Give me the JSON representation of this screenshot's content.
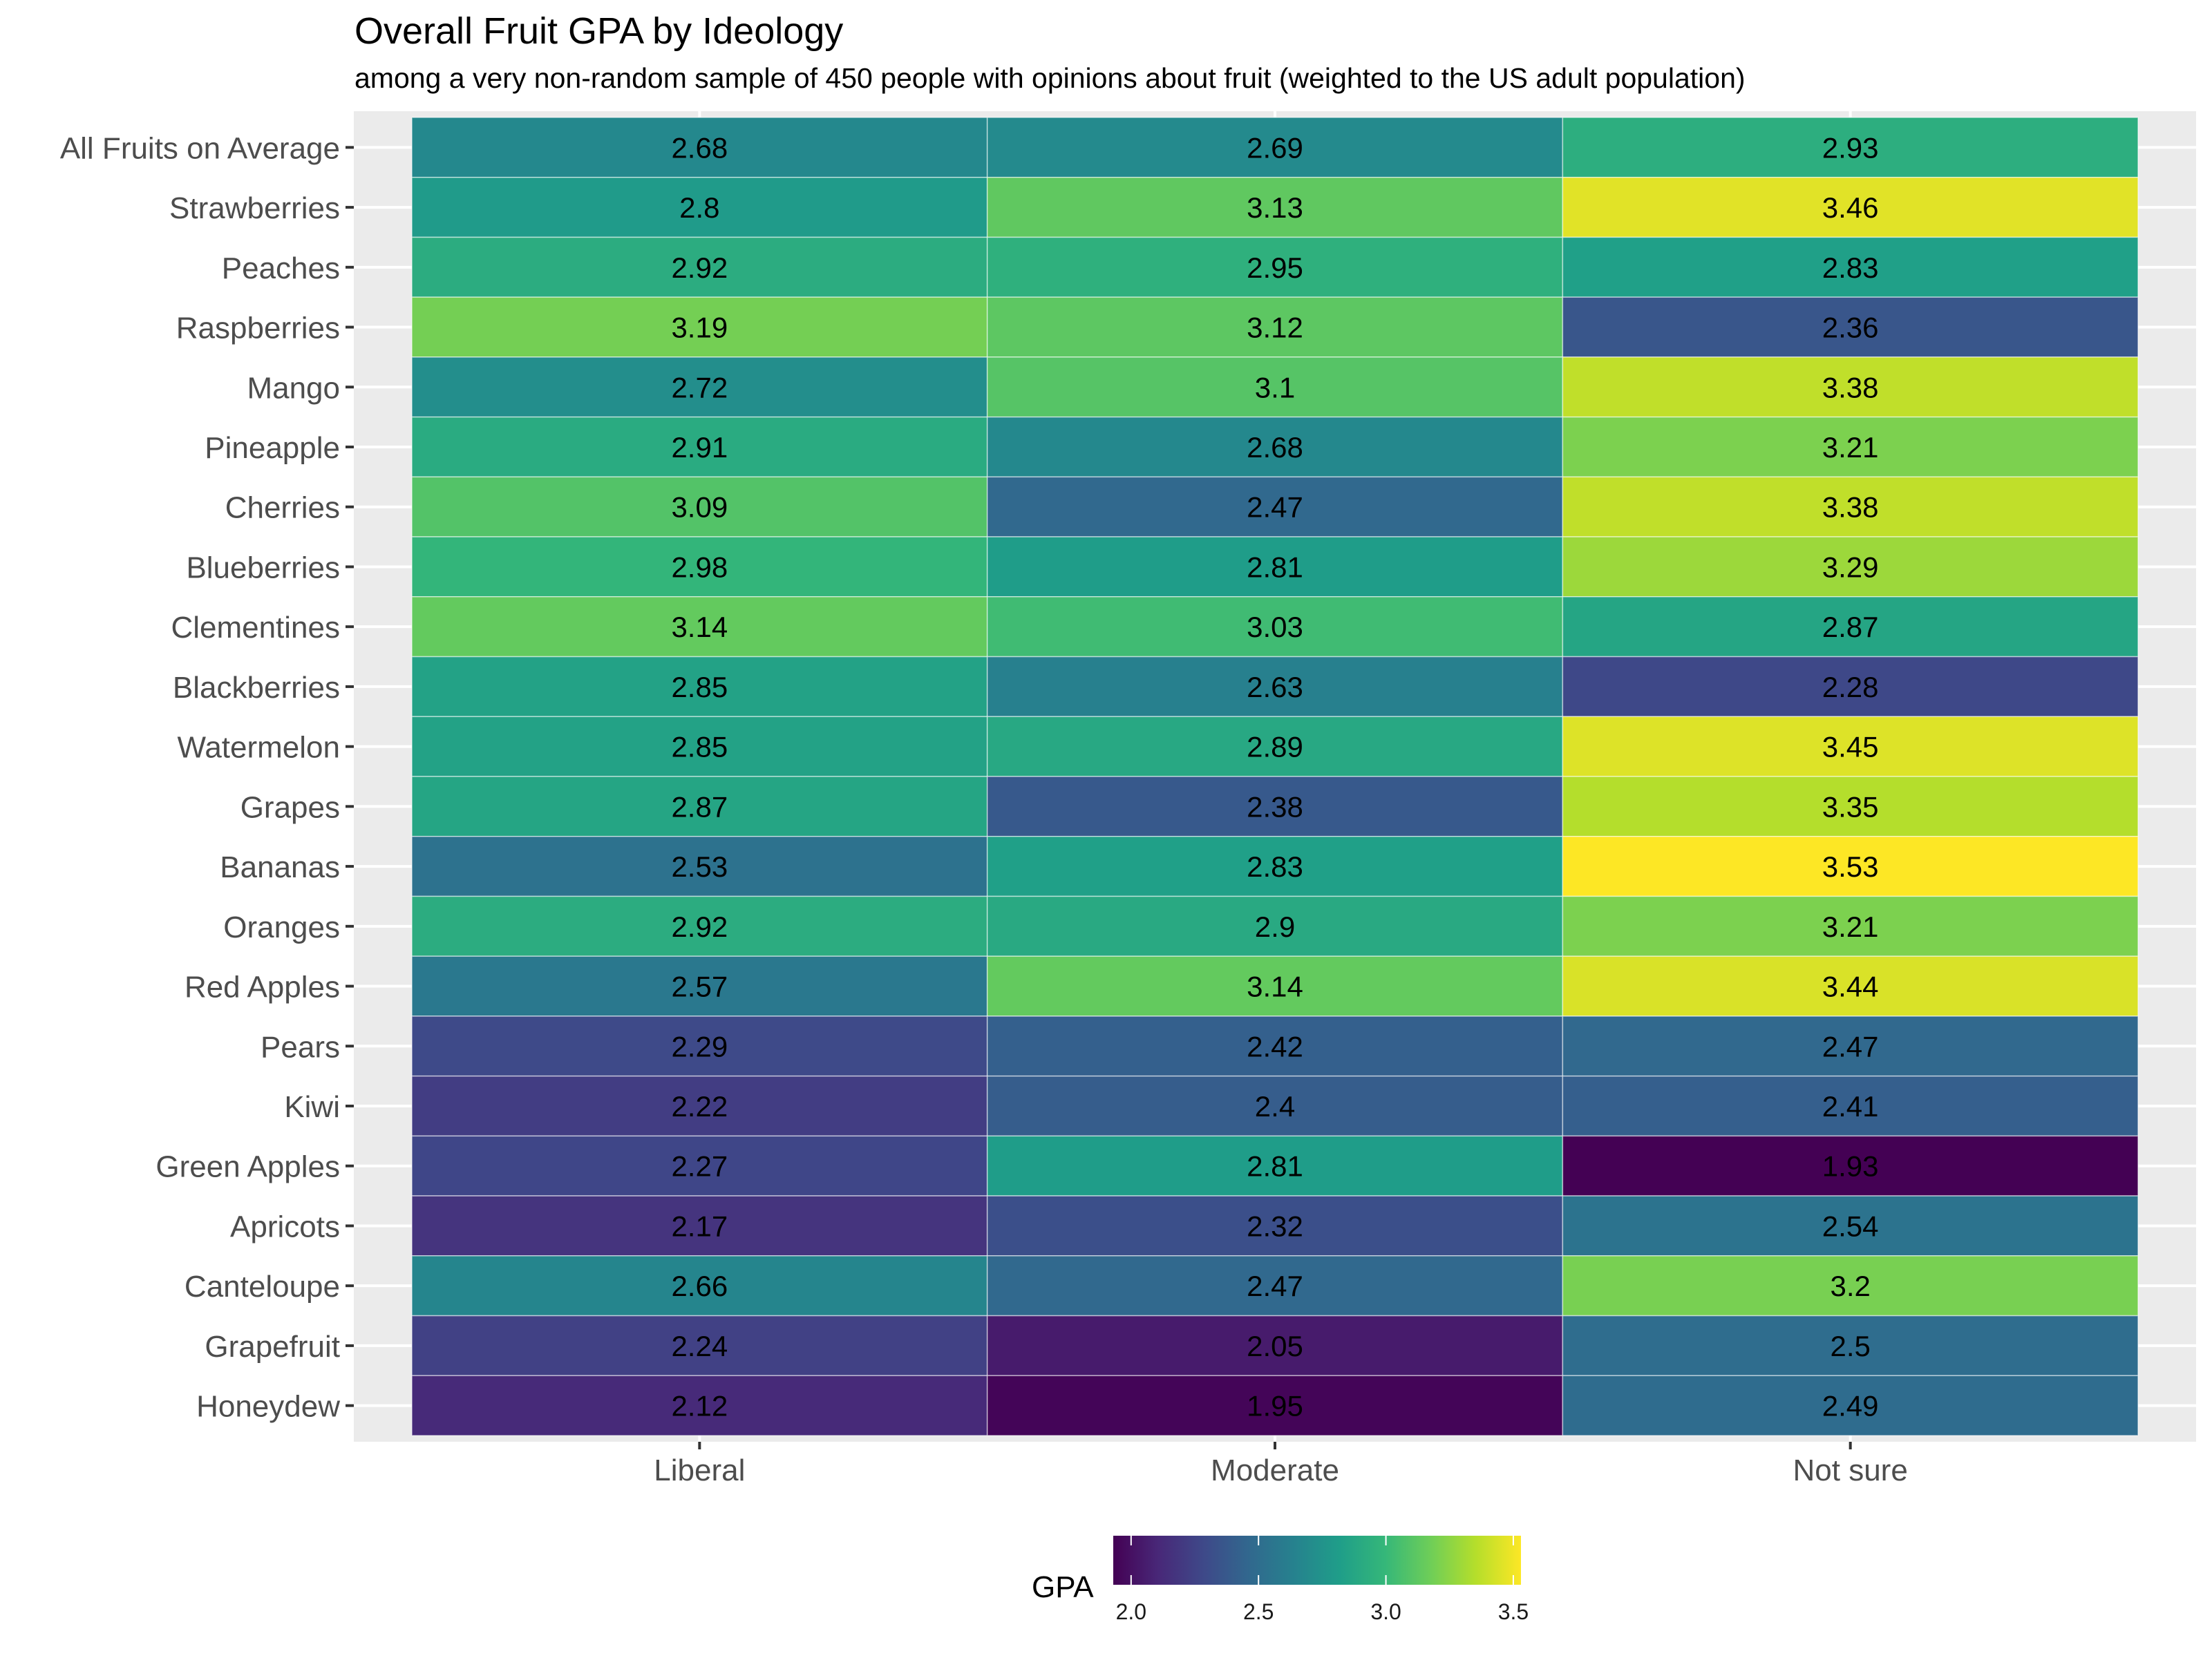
{
  "chart_data": {
    "type": "heatmap",
    "title": "Overall Fruit GPA by Ideology",
    "subtitle": "among a very non-random sample of 450 people with opinions about fruit (weighted to the US adult population)",
    "xlabel": "",
    "ylabel": "",
    "x_categories": [
      "Liberal",
      "Moderate",
      "Not sure"
    ],
    "y_categories": [
      "All Fruits on Average",
      "Strawberries",
      "Peaches",
      "Raspberries",
      "Mango",
      "Pineapple",
      "Cherries",
      "Blueberries",
      "Clementines",
      "Blackberries",
      "Watermelon",
      "Grapes",
      "Bananas",
      "Oranges",
      "Red Apples",
      "Pears",
      "Kiwi",
      "Green Apples",
      "Apricots",
      "Canteloupe",
      "Grapefruit",
      "Honeydew"
    ],
    "values": [
      [
        2.68,
        2.69,
        2.93
      ],
      [
        2.8,
        3.13,
        3.46
      ],
      [
        2.92,
        2.95,
        2.83
      ],
      [
        3.19,
        3.12,
        2.36
      ],
      [
        2.72,
        3.1,
        3.38
      ],
      [
        2.91,
        2.68,
        3.21
      ],
      [
        3.09,
        2.47,
        3.38
      ],
      [
        2.98,
        2.81,
        3.29
      ],
      [
        3.14,
        3.03,
        2.87
      ],
      [
        2.85,
        2.63,
        2.28
      ],
      [
        2.85,
        2.89,
        3.45
      ],
      [
        2.87,
        2.38,
        3.35
      ],
      [
        2.53,
        2.83,
        3.53
      ],
      [
        2.92,
        2.9,
        3.21
      ],
      [
        2.57,
        3.14,
        3.44
      ],
      [
        2.29,
        2.42,
        2.47
      ],
      [
        2.22,
        2.4,
        2.41
      ],
      [
        2.27,
        2.81,
        1.93
      ],
      [
        2.17,
        2.32,
        2.54
      ],
      [
        2.66,
        2.47,
        3.2
      ],
      [
        2.24,
        2.05,
        2.5
      ],
      [
        2.12,
        1.95,
        2.49
      ]
    ],
    "color_scale": {
      "name": "viridis",
      "domain": [
        1.93,
        3.53
      ],
      "stops": [
        "#440154",
        "#482878",
        "#3e4989",
        "#31688e",
        "#26828e",
        "#1f9e89",
        "#35b779",
        "#6ece58",
        "#b5de2b",
        "#fde725"
      ]
    },
    "legend": {
      "title": "GPA",
      "position": "bottom",
      "ticks": [
        2.0,
        2.5,
        3.0,
        3.5
      ],
      "tick_labels": [
        "2.0",
        "2.5",
        "3.0",
        "3.5"
      ]
    },
    "grid": true
  },
  "colors": {
    "panel_background": "#ebebeb",
    "gridline": "#ffffff",
    "axis_text": "#4d4d4d"
  }
}
